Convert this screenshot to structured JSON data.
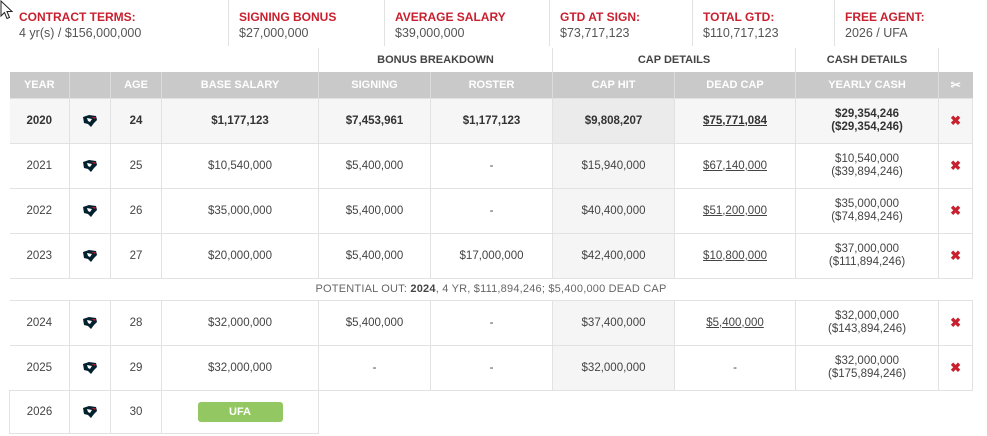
{
  "summary": {
    "contract_terms": {
      "label": "CONTRACT TERMS:",
      "value": "4 yr(s) / $156,000,000"
    },
    "signing_bonus": {
      "label": "SIGNING BONUS",
      "value": "$27,000,000"
    },
    "average_salary": {
      "label": "AVERAGE SALARY",
      "value": "$39,000,000"
    },
    "gtd_at_sign": {
      "label": "GTD AT SIGN:",
      "value": "$73,717,123"
    },
    "total_gtd": {
      "label": "TOTAL GTD:",
      "value": "$110,717,123"
    },
    "free_agent": {
      "label": "FREE AGENT:",
      "value": "2026 / UFA"
    }
  },
  "groups": {
    "bonus": "BONUS BREAKDOWN",
    "cap": "CAP DETAILS",
    "cash": "CASH DETAILS"
  },
  "columns": {
    "year": "YEAR",
    "age": "AGE",
    "base_salary": "BASE SALARY",
    "signing": "SIGNING",
    "roster": "ROSTER",
    "cap_hit": "CAP HIT",
    "dead_cap": "DEAD CAP",
    "yearly_cash": "YEARLY CASH",
    "release": "✂"
  },
  "rows": [
    {
      "year": "2020",
      "age": "24",
      "base": "$1,177,123",
      "signing": "$7,453,961",
      "roster": "$1,177,123",
      "cap_hit": "$9,808,207",
      "dead_cap": "$75,771,084",
      "cash": "$29,354,246",
      "cash_cum": "($29,354,246)",
      "remove": "✖"
    },
    {
      "year": "2021",
      "age": "25",
      "base": "$10,540,000",
      "signing": "$5,400,000",
      "roster": "-",
      "cap_hit": "$15,940,000",
      "dead_cap": "$67,140,000",
      "cash": "$10,540,000",
      "cash_cum": "($39,894,246)",
      "remove": "✖"
    },
    {
      "year": "2022",
      "age": "26",
      "base": "$35,000,000",
      "signing": "$5,400,000",
      "roster": "-",
      "cap_hit": "$40,400,000",
      "dead_cap": "$51,200,000",
      "cash": "$35,000,000",
      "cash_cum": "($74,894,246)",
      "remove": "✖"
    },
    {
      "year": "2023",
      "age": "27",
      "base": "$20,000,000",
      "signing": "$5,400,000",
      "roster": "$17,000,000",
      "cap_hit": "$42,400,000",
      "dead_cap": "$10,800,000",
      "cash": "$37,000,000",
      "cash_cum": "($111,894,246)",
      "remove": "✖"
    },
    {
      "year": "2024",
      "age": "28",
      "base": "$32,000,000",
      "signing": "$5,400,000",
      "roster": "-",
      "cap_hit": "$37,400,000",
      "dead_cap": "$5,400,000",
      "cash": "$32,000,000",
      "cash_cum": "($143,894,246)",
      "remove": "✖"
    },
    {
      "year": "2025",
      "age": "29",
      "base": "$32,000,000",
      "signing": "-",
      "roster": "-",
      "cap_hit": "$32,000,000",
      "dead_cap": "-",
      "cash": "$32,000,000",
      "cash_cum": "($175,894,246)",
      "remove": "✖"
    }
  ],
  "potential_out": {
    "prefix": "POTENTIAL OUT:",
    "year": "2024",
    "rest": ", 4 YR, $111,894,246; $5,400,000 DEAD CAP"
  },
  "final_row": {
    "year": "2026",
    "age": "30",
    "status": "UFA"
  },
  "colors": {
    "accent_red": "#c8202f",
    "header_gray": "#c9c9c9",
    "ufa_green": "#93c762",
    "team_navy": "#03202f",
    "team_red": "#a71930"
  },
  "icons": {
    "team_logo": "houston-texans-logo-icon",
    "remove": "remove-x-icon",
    "cursor": "mouse-pointer-icon"
  }
}
